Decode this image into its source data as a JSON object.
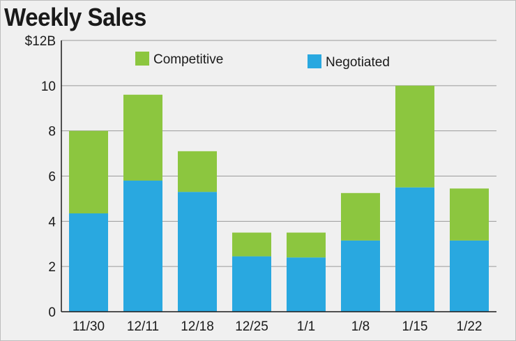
{
  "title": "Weekly Sales",
  "chart_data": {
    "type": "bar",
    "stacked": true,
    "title": "Weekly Sales",
    "categories": [
      "11/30",
      "12/11",
      "12/18",
      "12/25",
      "1/1",
      "1/8",
      "1/15",
      "1/22"
    ],
    "series": [
      {
        "name": "Negotiated",
        "color": "#29a8e0",
        "values": [
          4.35,
          5.8,
          5.3,
          2.45,
          2.4,
          3.15,
          5.5,
          3.15
        ]
      },
      {
        "name": "Competitive",
        "color": "#8cc63f",
        "values": [
          3.65,
          3.8,
          1.8,
          1.05,
          1.1,
          2.1,
          4.5,
          2.3
        ]
      }
    ],
    "y_ticks": [
      {
        "value": 0,
        "label": "0"
      },
      {
        "value": 2,
        "label": "2"
      },
      {
        "value": 4,
        "label": "4"
      },
      {
        "value": 6,
        "label": "6"
      },
      {
        "value": 8,
        "label": "8"
      },
      {
        "value": 10,
        "label": "10"
      },
      {
        "value": 12,
        "label": "$12B"
      }
    ],
    "ylim": [
      0,
      12
    ],
    "grid": true,
    "legend_order": [
      "Competitive",
      "Negotiated"
    ],
    "legend_position": "top"
  }
}
